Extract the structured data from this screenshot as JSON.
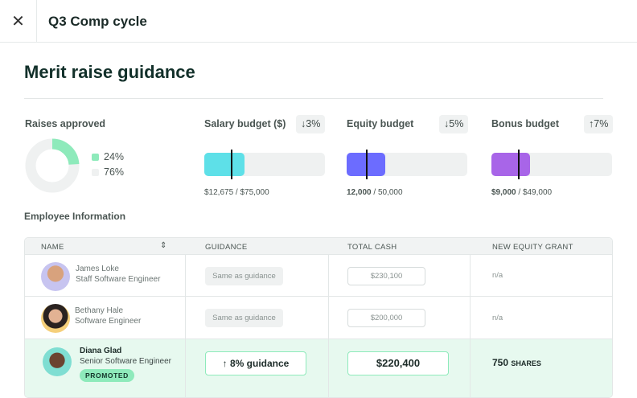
{
  "header": {
    "title": "Q3 Comp cycle",
    "close_icon": "close-icon"
  },
  "page": {
    "title": "Merit raise guidance"
  },
  "raises": {
    "label": "Raises approved",
    "approved": "24%",
    "remaining": "76%",
    "approved_fraction": 0.24,
    "colors": {
      "approved": "#8eeabb",
      "remaining": "#eff1f1"
    }
  },
  "budgets": [
    {
      "label": "Salary budget ($)",
      "change": "↓3%",
      "used": "$12,675",
      "total": "$75,000",
      "fill_fraction": 0.33,
      "marker_fraction": 0.22,
      "color": "#5ee0e8"
    },
    {
      "label": "Equity budget",
      "change": "↓5%",
      "used": "12,000",
      "total": "50,000",
      "fill_fraction": 0.32,
      "marker_fraction": 0.16,
      "color": "#6c6cff"
    },
    {
      "label": "Bonus budget",
      "change": "↑7%",
      "used": "$9,000",
      "total": "$49,000",
      "fill_fraction": 0.32,
      "marker_fraction": 0.22,
      "color": "#a865e8"
    }
  ],
  "employee_section": "Employee Information",
  "table": {
    "columns": [
      "NAME",
      "GUIDANCE",
      "TOTAL CASH",
      "NEW EQUITY GRANT"
    ],
    "rows": [
      {
        "name": "James Loke",
        "title": "Staff Software Engineer",
        "guidance": "Same as guidance",
        "total_cash": "$230,100",
        "equity": "n/a"
      },
      {
        "name": "Bethany Hale",
        "title": "Software Engineer",
        "guidance": "Same as guidance",
        "total_cash": "$200,000",
        "equity": "n/a"
      },
      {
        "name": "Diana Glad",
        "title": "Senior Software Engineer",
        "badge": "PROMOTED",
        "guidance": "↑ 8% guidance",
        "total_cash": "$220,400",
        "equity_value": "750",
        "equity_unit": "SHARES"
      }
    ]
  }
}
